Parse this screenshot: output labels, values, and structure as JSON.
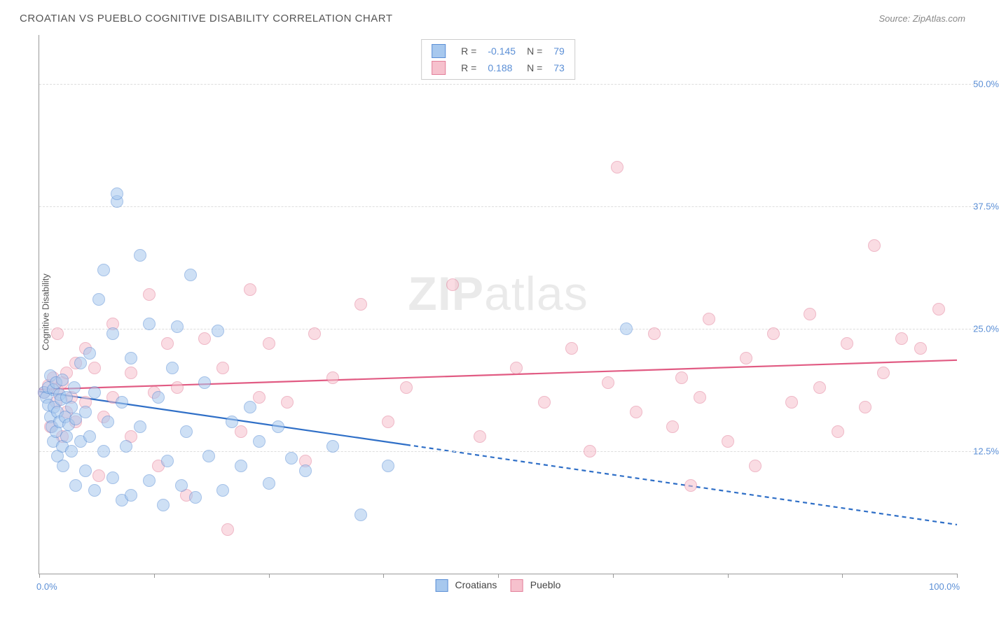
{
  "header": {
    "title": "CROATIAN VS PUEBLO COGNITIVE DISABILITY CORRELATION CHART",
    "source_prefix": "Source: ",
    "source_name": "ZipAtlas.com"
  },
  "watermark": {
    "left": "ZIP",
    "right": "atlas"
  },
  "chart": {
    "type": "scatter",
    "ylabel": "Cognitive Disability",
    "background_color": "#ffffff",
    "grid_color": "#dddddd",
    "axis_color": "#999999",
    "label_color": "#5b8fd6",
    "title_fontsize": 15,
    "label_fontsize": 13,
    "xlim": [
      0,
      100
    ],
    "ylim": [
      0,
      55
    ],
    "x_ticks": [
      0,
      12.5,
      25,
      37.5,
      50,
      62.5,
      75,
      87.5,
      100
    ],
    "x_tick_labels": {
      "0": "0.0%",
      "100": "100.0%"
    },
    "y_gridlines": [
      12.5,
      25,
      37.5,
      50
    ],
    "y_tick_labels": {
      "12.5": "12.5%",
      "25": "25.0%",
      "37.5": "37.5%",
      "50": "50.0%"
    },
    "marker_radius": 8,
    "marker_opacity": 0.55,
    "line_width": 2.2,
    "series": {
      "croatians": {
        "label": "Croatians",
        "color_fill": "#a7c8ee",
        "color_stroke": "#5b8fd6",
        "line_color": "#2f6fc7",
        "R": "-0.145",
        "N": "79",
        "trend": {
          "y_at_x0": 18.6,
          "y_at_x100": 5.0,
          "solid_until_x": 40
        },
        "points": [
          [
            0.5,
            18.5
          ],
          [
            0.8,
            18.0
          ],
          [
            1.0,
            17.2
          ],
          [
            1.0,
            19.0
          ],
          [
            1.2,
            16.0
          ],
          [
            1.2,
            20.2
          ],
          [
            1.4,
            15.0
          ],
          [
            1.5,
            18.8
          ],
          [
            1.5,
            13.5
          ],
          [
            1.6,
            17.0
          ],
          [
            1.8,
            19.5
          ],
          [
            1.8,
            14.5
          ],
          [
            2.0,
            16.5
          ],
          [
            2.0,
            12.0
          ],
          [
            2.2,
            18.3
          ],
          [
            2.2,
            15.5
          ],
          [
            2.4,
            17.8
          ],
          [
            2.5,
            13.0
          ],
          [
            2.5,
            19.8
          ],
          [
            2.6,
            11.0
          ],
          [
            2.8,
            16.0
          ],
          [
            3.0,
            18.0
          ],
          [
            3.0,
            14.0
          ],
          [
            3.2,
            15.2
          ],
          [
            3.5,
            17.0
          ],
          [
            3.5,
            12.5
          ],
          [
            3.8,
            19.0
          ],
          [
            4.0,
            9.0
          ],
          [
            4.0,
            15.8
          ],
          [
            4.5,
            13.5
          ],
          [
            4.5,
            21.5
          ],
          [
            5.0,
            16.5
          ],
          [
            5.0,
            10.5
          ],
          [
            5.5,
            22.5
          ],
          [
            5.5,
            14.0
          ],
          [
            6.0,
            8.5
          ],
          [
            6.0,
            18.5
          ],
          [
            6.5,
            28.0
          ],
          [
            7.0,
            12.5
          ],
          [
            7.0,
            31.0
          ],
          [
            7.5,
            15.5
          ],
          [
            8.0,
            9.8
          ],
          [
            8.0,
            24.5
          ],
          [
            8.5,
            38.0
          ],
          [
            8.5,
            38.8
          ],
          [
            9.0,
            17.5
          ],
          [
            9.0,
            7.5
          ],
          [
            9.5,
            13.0
          ],
          [
            10.0,
            22.0
          ],
          [
            10.0,
            8.0
          ],
          [
            11.0,
            32.5
          ],
          [
            11.0,
            15.0
          ],
          [
            12.0,
            9.5
          ],
          [
            12.0,
            25.5
          ],
          [
            13.0,
            18.0
          ],
          [
            13.5,
            7.0
          ],
          [
            14.0,
            11.5
          ],
          [
            14.5,
            21.0
          ],
          [
            15.0,
            25.2
          ],
          [
            15.5,
            9.0
          ],
          [
            16.0,
            14.5
          ],
          [
            16.5,
            30.5
          ],
          [
            17.0,
            7.8
          ],
          [
            18.0,
            19.5
          ],
          [
            18.5,
            12.0
          ],
          [
            19.5,
            24.8
          ],
          [
            20.0,
            8.5
          ],
          [
            21.0,
            15.5
          ],
          [
            22.0,
            11.0
          ],
          [
            23.0,
            17.0
          ],
          [
            24.0,
            13.5
          ],
          [
            25.0,
            9.2
          ],
          [
            26.0,
            15.0
          ],
          [
            27.5,
            11.8
          ],
          [
            29.0,
            10.5
          ],
          [
            32.0,
            13.0
          ],
          [
            35.0,
            6.0
          ],
          [
            38.0,
            11.0
          ],
          [
            64.0,
            25.0
          ]
        ]
      },
      "pueblo": {
        "label": "Pueblo",
        "color_fill": "#f6c1cd",
        "color_stroke": "#e37f9a",
        "line_color": "#e15b83",
        "R": "0.188",
        "N": "73",
        "trend": {
          "y_at_x0": 18.8,
          "y_at_x100": 21.8,
          "solid_until_x": 100
        },
        "points": [
          [
            0.5,
            18.5
          ],
          [
            1.0,
            19.2
          ],
          [
            1.2,
            15.0
          ],
          [
            1.5,
            20.0
          ],
          [
            1.8,
            17.5
          ],
          [
            2.0,
            18.8
          ],
          [
            2.0,
            24.5
          ],
          [
            2.5,
            19.5
          ],
          [
            2.5,
            14.0
          ],
          [
            3.0,
            20.5
          ],
          [
            3.0,
            16.5
          ],
          [
            3.5,
            18.0
          ],
          [
            4.0,
            15.5
          ],
          [
            4.0,
            21.5
          ],
          [
            5.0,
            17.5
          ],
          [
            5.0,
            23.0
          ],
          [
            6.0,
            21.0
          ],
          [
            6.5,
            10.0
          ],
          [
            7.0,
            16.0
          ],
          [
            8.0,
            18.0
          ],
          [
            8.0,
            25.5
          ],
          [
            10.0,
            20.5
          ],
          [
            10.0,
            14.0
          ],
          [
            12.0,
            28.5
          ],
          [
            12.5,
            18.5
          ],
          [
            13.0,
            11.0
          ],
          [
            14.0,
            23.5
          ],
          [
            15.0,
            19.0
          ],
          [
            16.0,
            8.0
          ],
          [
            18.0,
            24.0
          ],
          [
            20.0,
            21.0
          ],
          [
            20.5,
            4.5
          ],
          [
            22.0,
            14.5
          ],
          [
            23.0,
            29.0
          ],
          [
            24.0,
            18.0
          ],
          [
            25.0,
            23.5
          ],
          [
            27.0,
            17.5
          ],
          [
            29.0,
            11.5
          ],
          [
            30.0,
            24.5
          ],
          [
            32.0,
            20.0
          ],
          [
            35.0,
            27.5
          ],
          [
            38.0,
            15.5
          ],
          [
            40.0,
            19.0
          ],
          [
            45.0,
            29.5
          ],
          [
            48.0,
            14.0
          ],
          [
            52.0,
            21.0
          ],
          [
            55.0,
            17.5
          ],
          [
            58.0,
            23.0
          ],
          [
            60.0,
            12.5
          ],
          [
            62.0,
            19.5
          ],
          [
            63.0,
            41.5
          ],
          [
            65.0,
            16.5
          ],
          [
            67.0,
            24.5
          ],
          [
            69.0,
            15.0
          ],
          [
            70.0,
            20.0
          ],
          [
            71.0,
            9.0
          ],
          [
            72.0,
            18.0
          ],
          [
            73.0,
            26.0
          ],
          [
            75.0,
            13.5
          ],
          [
            77.0,
            22.0
          ],
          [
            78.0,
            11.0
          ],
          [
            80.0,
            24.5
          ],
          [
            82.0,
            17.5
          ],
          [
            84.0,
            26.5
          ],
          [
            85.0,
            19.0
          ],
          [
            87.0,
            14.5
          ],
          [
            88.0,
            23.5
          ],
          [
            90.0,
            17.0
          ],
          [
            91.0,
            33.5
          ],
          [
            92.0,
            20.5
          ],
          [
            94.0,
            24.0
          ],
          [
            96.0,
            23.0
          ],
          [
            98.0,
            27.0
          ]
        ]
      }
    }
  },
  "legend_top": {
    "r_label": "R =",
    "n_label": "N ="
  },
  "legend_bottom": {
    "items": [
      "croatians",
      "pueblo"
    ]
  }
}
